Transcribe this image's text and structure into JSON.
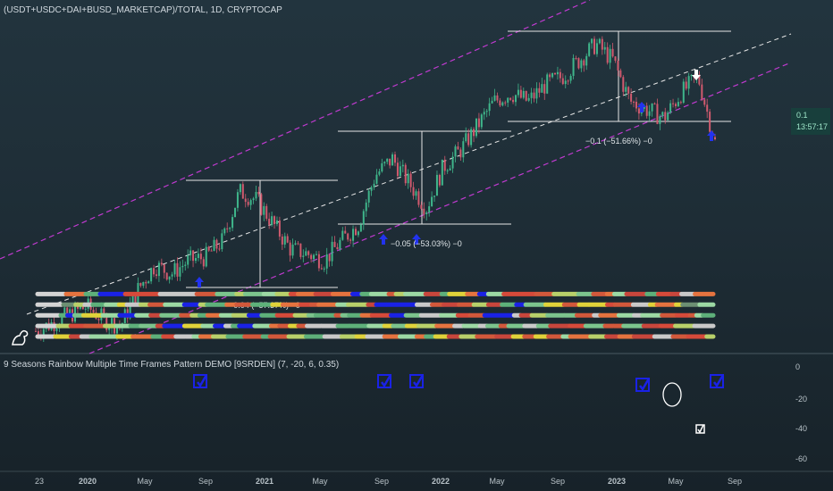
{
  "header": {
    "main_title": "(USDT+USDC+DAI+BUSD_MARKETCAP)/TOTAL, 1D, CRYPTOCAP",
    "indicator_title": "9 Seasons Rainbow Multiple Time Frames Pattern DEMO [9SRDEN] (7, -20, 6, 0.35)"
  },
  "price_badge": {
    "value": "0.1",
    "countdown": "13:57:17"
  },
  "colors": {
    "up": "#3fb68b",
    "down": "#d05a6e",
    "channel_outer": "#c03ad0",
    "channel_inner": "#e6e6e6",
    "accent": "#1a22e6"
  },
  "chart_data": [
    {
      "type": "line",
      "title": "(USDT+USDC+DAI+BUSD_MARKETCAP)/TOTAL, 1D, CRYPTOCAP",
      "x_tick_labels": [
        "23",
        "2020",
        "May",
        "Sep",
        "2021",
        "May",
        "Sep",
        "2022",
        "May",
        "Sep",
        "2023",
        "May",
        "Sep"
      ],
      "note_scale": "price scale labels not visible",
      "series": [
        {
          "values": [
            0.035,
            0.04,
            0.045,
            0.05,
            0.042,
            0.038,
            0.06,
            0.075,
            0.07,
            0.078,
            0.08,
            0.09,
            0.12,
            0.115,
            0.1,
            0.085,
            0.082,
            0.078,
            0.09,
            0.1,
            0.13,
            0.14,
            0.125,
            0.11,
            0.135,
            0.145,
            0.16,
            0.175,
            0.18,
            0.175,
            0.185,
            0.19,
            0.2,
            0.21,
            0.2,
            0.175,
            0.17,
            0.165,
            0.18,
            0.19,
            0.15
          ]
        }
      ],
      "annotations": [
        {
          "text": "−0.04 (−57.37%) −0"
        },
        {
          "text": "−0.05 (−53.03%) −0"
        },
        {
          "text": "−0.1 (−51.66%) −0"
        }
      ]
    },
    {
      "type": "heatmap",
      "title": "9 Seasons Rainbow Multiple Time Frames Pattern DEMO [9SRDEN] (7, -20, 6, 0.35)",
      "y_tick_labels": [
        "0",
        "-20",
        "-40",
        "-60"
      ],
      "rows": 5,
      "row_levels": [
        -20,
        -27,
        -34,
        -41,
        -48
      ]
    }
  ]
}
